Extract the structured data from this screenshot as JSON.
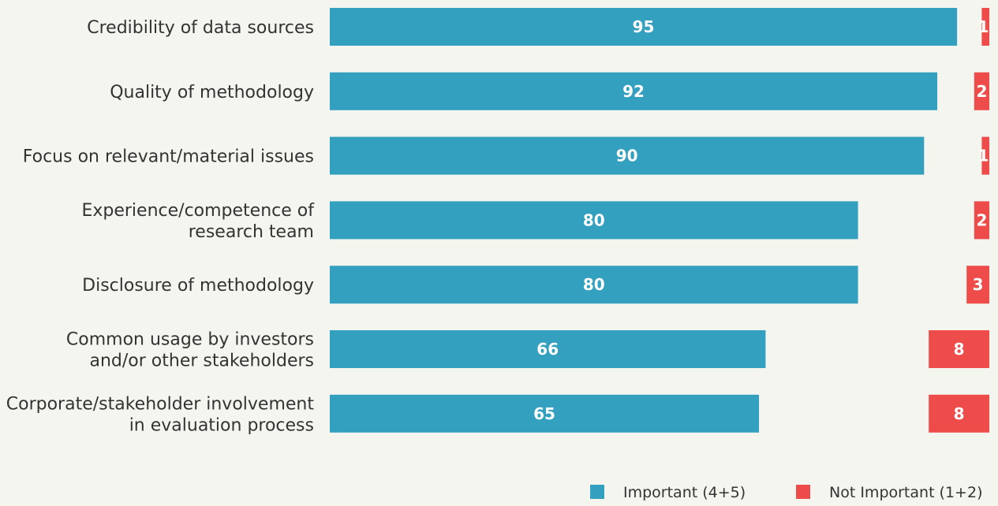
{
  "chart_data": {
    "type": "bar",
    "orientation": "horizontal",
    "categories": [
      "Credibility of data sources",
      "Quality of methodology",
      "Focus on relevant/material issues",
      "Experience/competence of\nresearch team",
      "Disclosure of methodology",
      "Common usage by investors\nand/or other stakeholders",
      "Corporate/stakeholder involvement\nin evaluation process"
    ],
    "series": [
      {
        "name": "Important (4+5)",
        "color": "#33a0bf",
        "values": [
          95,
          92,
          90,
          80,
          80,
          66,
          65
        ]
      },
      {
        "name": "Not Important (1+2)",
        "color": "#ee4b4b",
        "values": [
          1,
          2,
          1,
          2,
          3,
          8,
          8
        ]
      }
    ],
    "legend": "bottom-right"
  }
}
